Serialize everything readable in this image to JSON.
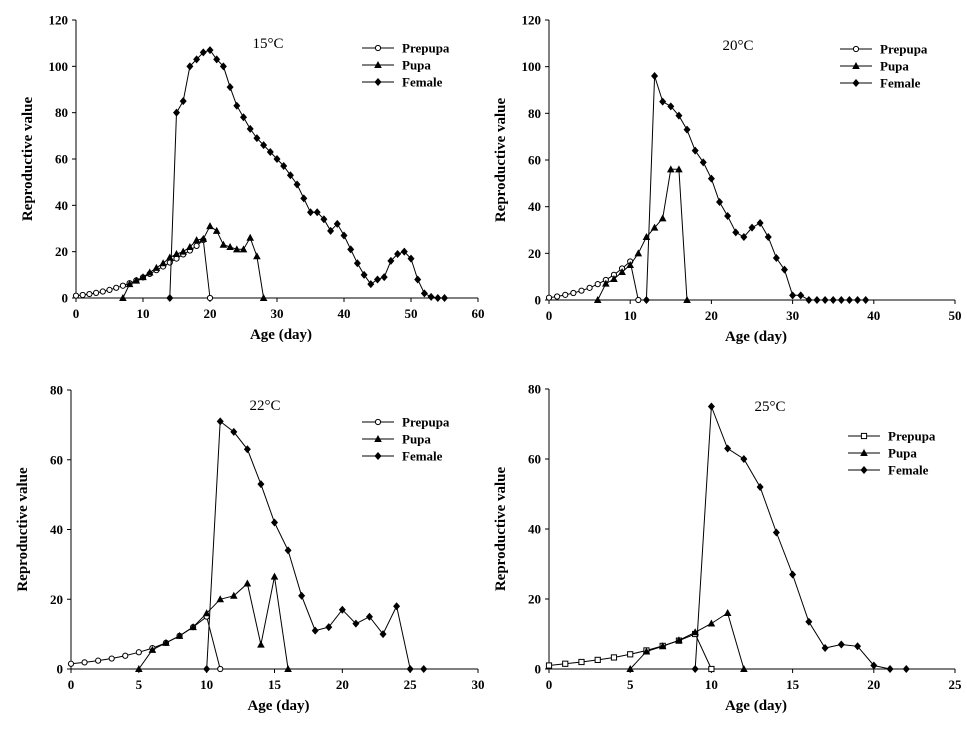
{
  "colors": {
    "line": "#000000",
    "marker_fill": "#000000",
    "open_marker_fill": "#ffffff"
  },
  "chart_data": [
    {
      "type": "line",
      "title": "15°C",
      "xlabel": "Age (day)",
      "ylabel": "Reproductive value",
      "xlim": [
        0,
        60
      ],
      "ylim": [
        0,
        120
      ],
      "xticks": [
        "0",
        "10",
        "20",
        "30",
        "40",
        "50",
        "60"
      ],
      "yticks": [
        "0",
        "20",
        "40",
        "60",
        "80",
        "100",
        "120"
      ],
      "legend": [
        "Prepupa",
        "Pupa",
        "Female"
      ],
      "legend_position": "top-right",
      "series": [
        {
          "name": "Prepupa",
          "marker": "open-circle",
          "x": [
            0,
            1,
            2,
            3,
            4,
            5,
            6,
            7,
            8,
            9,
            10,
            11,
            12,
            13,
            14,
            15,
            16,
            17,
            18,
            19,
            20
          ],
          "y": [
            1,
            1.3,
            1.7,
            2.2,
            2.8,
            3.5,
            4.4,
            5.3,
            6.4,
            7.6,
            8.9,
            10.4,
            12,
            13.6,
            15.3,
            17,
            18.8,
            20.5,
            22.5,
            25,
            0
          ]
        },
        {
          "name": "Pupa",
          "marker": "triangle",
          "x": [
            7,
            8,
            9,
            10,
            11,
            12,
            13,
            14,
            15,
            16,
            17,
            18,
            19,
            20,
            21,
            22,
            23,
            24,
            25,
            26,
            27,
            28
          ],
          "y": [
            0,
            6,
            7.5,
            9,
            11,
            13,
            15,
            17.5,
            19,
            20,
            22,
            25,
            25.5,
            31,
            29,
            23,
            22,
            21,
            21,
            26,
            18,
            0
          ]
        },
        {
          "name": "Female",
          "marker": "diamond",
          "x": [
            14,
            15,
            16,
            17,
            18,
            19,
            20,
            21,
            22,
            23,
            24,
            25,
            26,
            27,
            28,
            29,
            30,
            31,
            32,
            33,
            34,
            35,
            36,
            37,
            38,
            39,
            40,
            41,
            42,
            43,
            44,
            45,
            46,
            47,
            48,
            49,
            50,
            51,
            52,
            53,
            54,
            55
          ],
          "y": [
            0,
            80,
            85,
            100,
            103,
            106,
            107,
            103,
            100,
            91,
            83,
            78,
            73,
            69,
            66,
            63,
            60,
            57,
            53,
            49,
            43,
            37,
            37,
            34,
            29,
            32,
            27,
            21,
            15,
            10,
            6,
            8,
            9,
            16,
            19,
            20,
            17,
            8,
            2,
            0.5,
            0,
            0
          ]
        }
      ]
    },
    {
      "type": "line",
      "title": "20°C",
      "xlabel": "Age (day)",
      "ylabel": "Reproductive value",
      "xlim": [
        0,
        50
      ],
      "ylim": [
        0,
        120
      ],
      "xticks": [
        "0",
        "10",
        "20",
        "30",
        "40",
        "50"
      ],
      "yticks": [
        "0",
        "20",
        "40",
        "60",
        "80",
        "100",
        "120"
      ],
      "legend": [
        "Prepupa",
        "Pupa",
        "Female"
      ],
      "legend_position": "top-right",
      "series": [
        {
          "name": "Prepupa",
          "marker": "open-circle",
          "x": [
            0,
            1,
            2,
            3,
            4,
            5,
            6,
            7,
            8,
            9,
            10,
            11
          ],
          "y": [
            1,
            1.5,
            2.2,
            3,
            4,
            5.2,
            6.8,
            8.6,
            10.8,
            13.5,
            16.5,
            0
          ]
        },
        {
          "name": "Pupa",
          "marker": "triangle",
          "x": [
            6,
            7,
            8,
            9,
            10,
            11,
            12,
            13,
            14,
            15,
            16,
            17
          ],
          "y": [
            0,
            7,
            9,
            12,
            15,
            20,
            27,
            31,
            35,
            56,
            56,
            0
          ]
        },
        {
          "name": "Female",
          "marker": "diamond",
          "x": [
            12,
            13,
            14,
            15,
            16,
            17,
            18,
            19,
            20,
            21,
            22,
            23,
            24,
            25,
            26,
            27,
            28,
            29,
            30,
            31,
            32,
            33,
            34,
            35,
            36,
            37,
            38,
            39
          ],
          "y": [
            0,
            96,
            85,
            83,
            79,
            73,
            64,
            59,
            52,
            42,
            36,
            29,
            27,
            31,
            33,
            27,
            18,
            13,
            2,
            2,
            0,
            0,
            0,
            0,
            0,
            0,
            0,
            0
          ]
        }
      ]
    },
    {
      "type": "line",
      "title": "22°C",
      "xlabel": "Age (day)",
      "ylabel": "Reproductive value",
      "xlim": [
        0,
        30
      ],
      "ylim": [
        0,
        80
      ],
      "xticks": [
        "0",
        "5",
        "10",
        "15",
        "20",
        "25",
        "30"
      ],
      "yticks": [
        "0",
        "20",
        "40",
        "60",
        "80"
      ],
      "legend": [
        "Prepupa",
        "Pupa",
        "Female"
      ],
      "legend_position": "top-right",
      "series": [
        {
          "name": "Prepupa",
          "marker": "open-circle",
          "x": [
            0,
            1,
            2,
            3,
            4,
            5,
            6,
            7,
            8,
            9,
            10,
            11
          ],
          "y": [
            1.5,
            1.9,
            2.4,
            3,
            3.8,
            4.8,
            6,
            7.5,
            9.5,
            12,
            15,
            0
          ]
        },
        {
          "name": "Pupa",
          "marker": "triangle",
          "x": [
            5,
            6,
            7,
            8,
            9,
            10,
            11,
            12,
            13,
            14,
            15,
            16
          ],
          "y": [
            0,
            5.5,
            7.5,
            9.5,
            12,
            16,
            20,
            21,
            24.5,
            7,
            26.5,
            0
          ]
        },
        {
          "name": "Female",
          "marker": "diamond",
          "x": [
            10,
            11,
            12,
            13,
            14,
            15,
            16,
            17,
            18,
            19,
            20,
            21,
            22,
            23,
            24,
            25,
            26
          ],
          "y": [
            0,
            71,
            68,
            63,
            53,
            42,
            34,
            21,
            11,
            12,
            17,
            13,
            15,
            10,
            18,
            0,
            0
          ]
        }
      ]
    },
    {
      "type": "line",
      "title": "25°C",
      "xlabel": "Age (day)",
      "ylabel": "Reproductive value",
      "xlim": [
        0,
        25
      ],
      "ylim": [
        0,
        80
      ],
      "xticks": [
        "0",
        "5",
        "10",
        "15",
        "20",
        "25"
      ],
      "yticks": [
        "0",
        "20",
        "40",
        "60",
        "80"
      ],
      "legend": [
        "Prepupa",
        "Pupa",
        "Female"
      ],
      "legend_position": "top-right",
      "series": [
        {
          "name": "Prepupa",
          "marker": "open-square",
          "x": [
            0,
            1,
            2,
            3,
            4,
            5,
            6,
            7,
            8,
            9,
            10
          ],
          "y": [
            1,
            1.5,
            2,
            2.6,
            3.3,
            4.2,
            5.3,
            6.6,
            8.1,
            10,
            0
          ]
        },
        {
          "name": "Pupa",
          "marker": "triangle",
          "x": [
            5,
            6,
            7,
            8,
            9,
            10,
            11,
            12
          ],
          "y": [
            0,
            5,
            6.5,
            8.2,
            10.5,
            13,
            16,
            0
          ]
        },
        {
          "name": "Female",
          "marker": "diamond",
          "x": [
            9,
            10,
            11,
            12,
            13,
            14,
            15,
            16,
            17,
            18,
            19,
            20,
            21,
            22
          ],
          "y": [
            0,
            75,
            63,
            60,
            52,
            39,
            27,
            13.5,
            6,
            7,
            6.5,
            1,
            0,
            0
          ]
        }
      ]
    }
  ]
}
